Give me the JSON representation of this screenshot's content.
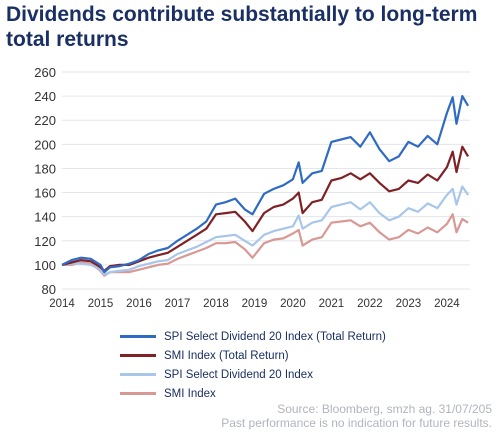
{
  "title": "Dividends contribute substantially to long-term total returns",
  "chart_data": {
    "type": "line",
    "title": "Dividends contribute substantially to long-term total returns",
    "xlabel": "",
    "ylabel": "",
    "xlim": [
      2014,
      2024.6
    ],
    "ylim": [
      80,
      260
    ],
    "xticks": [
      2014,
      2015,
      2016,
      2017,
      2018,
      2019,
      2020,
      2021,
      2022,
      2023,
      2024
    ],
    "yticks": [
      80,
      100,
      120,
      140,
      160,
      180,
      200,
      220,
      240,
      260
    ],
    "grid": "horizontal",
    "legend_position": "bottom",
    "series": [
      {
        "name": "SPI Select Dividend 20 Index (Total Return)",
        "color": "#2f6bc5",
        "x": [
          2014.0,
          2014.25,
          2014.5,
          2014.75,
          2015.0,
          2015.1,
          2015.25,
          2015.5,
          2015.75,
          2016.0,
          2016.25,
          2016.5,
          2016.75,
          2017.0,
          2017.25,
          2017.5,
          2017.75,
          2018.0,
          2018.25,
          2018.5,
          2018.75,
          2018.95,
          2019.25,
          2019.5,
          2019.75,
          2020.0,
          2020.15,
          2020.25,
          2020.5,
          2020.75,
          2021.0,
          2021.25,
          2021.5,
          2021.75,
          2022.0,
          2022.25,
          2022.5,
          2022.75,
          2023.0,
          2023.25,
          2023.5,
          2023.75,
          2024.0,
          2024.15,
          2024.25,
          2024.4,
          2024.55
        ],
        "values": [
          100,
          104,
          106,
          105,
          100,
          94,
          98,
          99,
          101,
          104,
          109,
          112,
          114,
          120,
          125,
          130,
          136,
          150,
          152,
          155,
          146,
          142,
          159,
          163,
          166,
          171,
          185,
          168,
          176,
          178,
          202,
          204,
          206,
          198,
          210,
          196,
          186,
          190,
          202,
          198,
          207,
          200,
          226,
          239,
          217,
          240,
          232
        ]
      },
      {
        "name": "SMI Index (Total Return)",
        "color": "#7f2226",
        "x": [
          2014.0,
          2014.25,
          2014.5,
          2014.75,
          2015.0,
          2015.1,
          2015.25,
          2015.5,
          2015.75,
          2016.0,
          2016.25,
          2016.5,
          2016.75,
          2017.0,
          2017.25,
          2017.5,
          2017.75,
          2018.0,
          2018.25,
          2018.5,
          2018.75,
          2018.95,
          2019.25,
          2019.5,
          2019.75,
          2020.0,
          2020.15,
          2020.25,
          2020.5,
          2020.75,
          2021.0,
          2021.25,
          2021.5,
          2021.75,
          2022.0,
          2022.25,
          2022.5,
          2022.75,
          2023.0,
          2023.25,
          2023.5,
          2023.75,
          2024.0,
          2024.15,
          2024.25,
          2024.4,
          2024.55
        ],
        "values": [
          100,
          102,
          104,
          103,
          98,
          95,
          99,
          100,
          100,
          103,
          106,
          108,
          110,
          115,
          120,
          125,
          130,
          142,
          143,
          144,
          136,
          128,
          143,
          148,
          150,
          155,
          160,
          143,
          152,
          154,
          170,
          172,
          176,
          171,
          176,
          168,
          161,
          163,
          170,
          168,
          175,
          170,
          181,
          194,
          177,
          198,
          190
        ]
      },
      {
        "name": "SPI Select Dividend 20 Index",
        "color": "#a8c6ea",
        "x": [
          2014.0,
          2014.25,
          2014.5,
          2014.75,
          2015.0,
          2015.1,
          2015.25,
          2015.5,
          2015.75,
          2016.0,
          2016.25,
          2016.5,
          2016.75,
          2017.0,
          2017.25,
          2017.5,
          2017.75,
          2018.0,
          2018.25,
          2018.5,
          2018.75,
          2018.95,
          2019.25,
          2019.5,
          2019.75,
          2020.0,
          2020.15,
          2020.25,
          2020.5,
          2020.75,
          2021.0,
          2021.25,
          2021.5,
          2021.75,
          2022.0,
          2022.25,
          2022.5,
          2022.75,
          2023.0,
          2023.25,
          2023.5,
          2023.75,
          2024.0,
          2024.15,
          2024.25,
          2024.4,
          2024.55
        ],
        "values": [
          100,
          101,
          101,
          100,
          96,
          92,
          94,
          95,
          96,
          99,
          101,
          103,
          104,
          109,
          112,
          115,
          119,
          123,
          124,
          125,
          120,
          116,
          125,
          128,
          130,
          132,
          141,
          130,
          135,
          137,
          148,
          150,
          152,
          146,
          152,
          143,
          137,
          140,
          147,
          144,
          151,
          147,
          158,
          163,
          150,
          165,
          158
        ]
      },
      {
        "name": "SMI Index",
        "color": "#d89894",
        "x": [
          2014.0,
          2014.25,
          2014.5,
          2014.75,
          2015.0,
          2015.1,
          2015.25,
          2015.5,
          2015.75,
          2016.0,
          2016.25,
          2016.5,
          2016.75,
          2017.0,
          2017.25,
          2017.5,
          2017.75,
          2018.0,
          2018.25,
          2018.5,
          2018.75,
          2018.95,
          2019.25,
          2019.5,
          2019.75,
          2020.0,
          2020.15,
          2020.25,
          2020.5,
          2020.75,
          2021.0,
          2021.25,
          2021.5,
          2021.75,
          2022.0,
          2022.25,
          2022.5,
          2022.75,
          2023.0,
          2023.25,
          2023.5,
          2023.75,
          2024.0,
          2024.15,
          2024.25,
          2024.4,
          2024.55
        ],
        "values": [
          100,
          100,
          102,
          101,
          95,
          91,
          94,
          94,
          94,
          96,
          98,
          100,
          101,
          105,
          108,
          111,
          114,
          118,
          118,
          119,
          113,
          106,
          118,
          121,
          122,
          126,
          129,
          116,
          121,
          123,
          135,
          136,
          137,
          132,
          135,
          127,
          121,
          123,
          129,
          126,
          131,
          127,
          134,
          142,
          127,
          138,
          135
        ]
      }
    ]
  },
  "source_line": "Source: Bloomberg, smzh ag. 31/07/205",
  "disclaimer": "Past performance is no indication for future results."
}
